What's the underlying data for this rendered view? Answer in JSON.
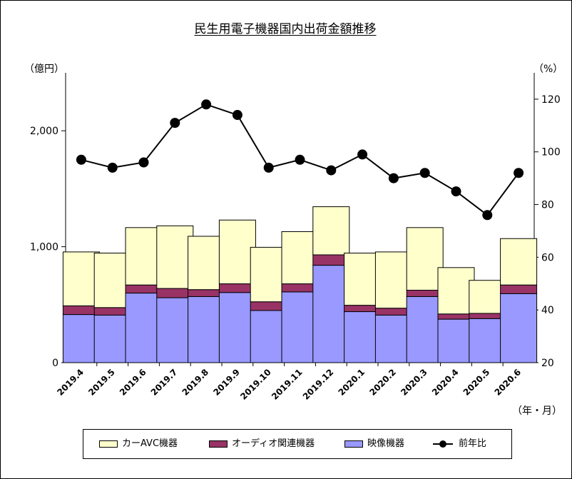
{
  "page": {
    "title": "民生用電子機器国内出荷金額推移",
    "left_unit": "（億円）",
    "right_unit": "（%）",
    "x_unit": "（年・月）"
  },
  "chart_data": {
    "type": "bar",
    "stacked": true,
    "categories": [
      "2019.4",
      "2019.5",
      "2019.6",
      "2019.7",
      "2019.8",
      "2019.9",
      "2019.10",
      "2019.11",
      "2019.12",
      "2020.1",
      "2020.2",
      "2020.3",
      "2020.4",
      "2020.5",
      "2020.6"
    ],
    "series": [
      {
        "name": "映像機器",
        "color": "#9999ff",
        "values": [
          415,
          410,
          600,
          560,
          570,
          605,
          450,
          610,
          840,
          440,
          410,
          570,
          375,
          380,
          595
        ]
      },
      {
        "name": "オーディオ関連機器",
        "color": "#993366",
        "values": [
          75,
          65,
          70,
          80,
          60,
          75,
          75,
          70,
          90,
          55,
          60,
          55,
          45,
          45,
          75
        ]
      },
      {
        "name": "カーAVC機器",
        "color": "#ffffcc",
        "values": [
          465,
          470,
          495,
          540,
          460,
          550,
          470,
          450,
          415,
          450,
          485,
          540,
          400,
          285,
          400
        ]
      }
    ],
    "line": {
      "name": "前年比",
      "color": "#000000",
      "values": [
        97,
        94,
        96,
        111,
        118,
        114,
        94,
        97,
        93,
        99,
        90,
        92,
        85,
        76,
        92
      ]
    },
    "left_axis": {
      "min": 0,
      "max": 2500,
      "ticks": [
        0,
        1000,
        2000
      ],
      "tick_labels": [
        "0",
        "1,000",
        "2,000"
      ]
    },
    "right_axis": {
      "min": 20,
      "max": 130,
      "ticks": [
        20,
        40,
        60,
        80,
        100,
        120
      ],
      "tick_labels": [
        "20",
        "40",
        "60",
        "80",
        "100",
        "120"
      ]
    },
    "grid": false,
    "legend_position": "bottom",
    "legend_order": [
      "カーAVC機器",
      "オーディオ関連機器",
      "映像機器",
      "前年比"
    ]
  }
}
